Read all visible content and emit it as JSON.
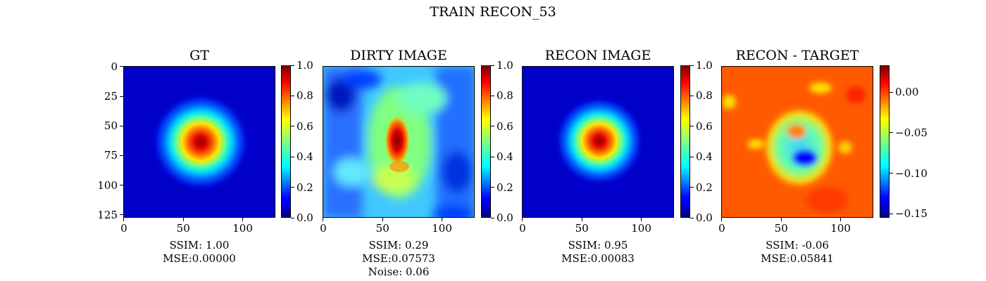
{
  "figure": {
    "title": "TRAIN RECON_53"
  },
  "colors": {
    "colormap": "jet"
  },
  "chart_data": [
    {
      "type": "heatmap",
      "title": "GT",
      "xticks": [
        "0",
        "50",
        "100"
      ],
      "yticks": [
        "0",
        "25",
        "50",
        "75",
        "100",
        "125"
      ],
      "x_range": [
        0,
        127
      ],
      "y_range": [
        0,
        127
      ],
      "colorbar": {
        "range": [
          0.0,
          1.0
        ],
        "ticks": [
          "0.0",
          "0.2",
          "0.4",
          "0.6",
          "0.8",
          "1.0"
        ]
      },
      "metrics": [
        "SSIM: 1.00",
        "MSE:0.00000"
      ]
    },
    {
      "type": "heatmap",
      "title": "DIRTY IMAGE",
      "xticks": [
        "0",
        "50",
        "100"
      ],
      "x_range": [
        0,
        127
      ],
      "y_range": [
        0,
        127
      ],
      "colorbar": {
        "range": [
          0.0,
          1.0
        ],
        "ticks": [
          "0.0",
          "0.2",
          "0.4",
          "0.6",
          "0.8",
          "1.0"
        ]
      },
      "metrics": [
        "SSIM: 0.29",
        "MSE:0.07573",
        "Noise: 0.06"
      ]
    },
    {
      "type": "heatmap",
      "title": "RECON IMAGE",
      "xticks": [
        "0",
        "50",
        "100"
      ],
      "x_range": [
        0,
        127
      ],
      "y_range": [
        0,
        127
      ],
      "colorbar": {
        "range": [
          0.0,
          1.0
        ],
        "ticks": [
          "0.0",
          "0.2",
          "0.4",
          "0.6",
          "0.8",
          "1.0"
        ]
      },
      "metrics": [
        "SSIM: 0.95",
        "MSE:0.00083"
      ]
    },
    {
      "type": "heatmap",
      "title": "RECON - TARGET",
      "xticks": [
        "0",
        "50",
        "100"
      ],
      "x_range": [
        0,
        127
      ],
      "y_range": [
        0,
        127
      ],
      "colorbar": {
        "range": [
          -0.155,
          0.033
        ],
        "ticks": [
          "0.00",
          "−0.05",
          "−0.10",
          "−0.15"
        ],
        "tick_values": [
          0.0,
          -0.05,
          -0.1,
          -0.15
        ]
      },
      "metrics": [
        "SSIM: -0.06",
        "MSE:0.05841"
      ]
    }
  ]
}
